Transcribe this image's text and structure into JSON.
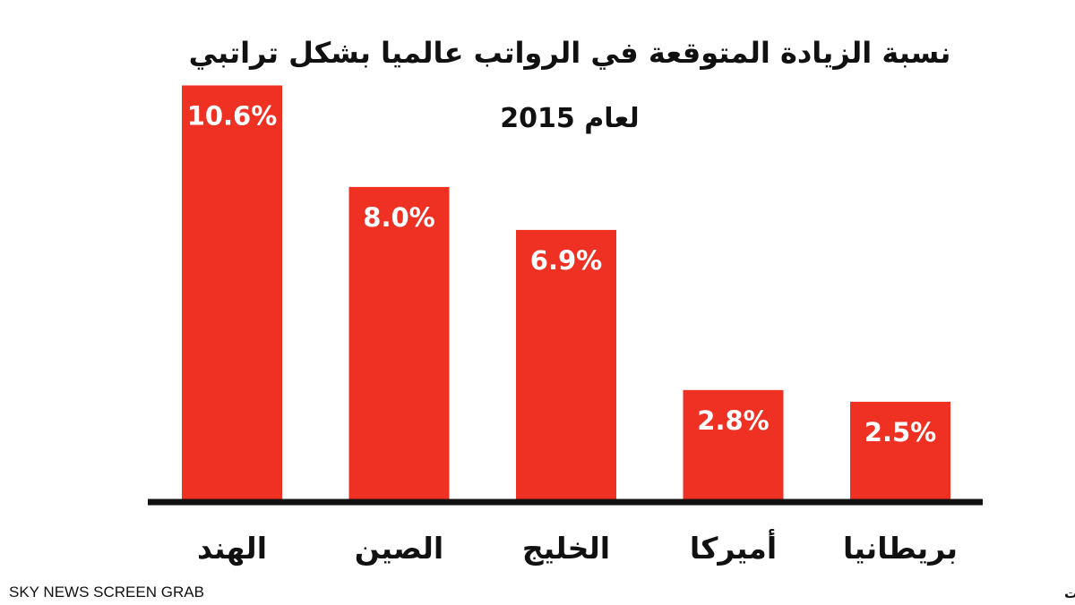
{
  "chart_data": {
    "type": "bar",
    "title": "نسبة الزيادة المتوقعة في الرواتب عالميا بشكل تراتبي",
    "subtitle": "لعام 2015",
    "categories": [
      "الهند",
      "الصين",
      "الخليج",
      "أميركا",
      "بريطانيا"
    ],
    "values": [
      10.6,
      8.0,
      6.9,
      2.8,
      2.5
    ],
    "value_labels": [
      "10.6%",
      "8.0%",
      "6.9%",
      "2.8%",
      "2.5%"
    ],
    "ylim": [
      0,
      11
    ],
    "xlabel": "",
    "ylabel": "",
    "grid": false,
    "legend": "none",
    "colors": {
      "bar": "#ef3124",
      "axis": "#111111",
      "value_text": "#ffffff",
      "text": "#111111"
    }
  },
  "footer": {
    "watermark": "SKY NEWS SCREEN GRAB",
    "source": "المصدر: غلف تالنت، هيه غروب ، أون هيوت"
  }
}
